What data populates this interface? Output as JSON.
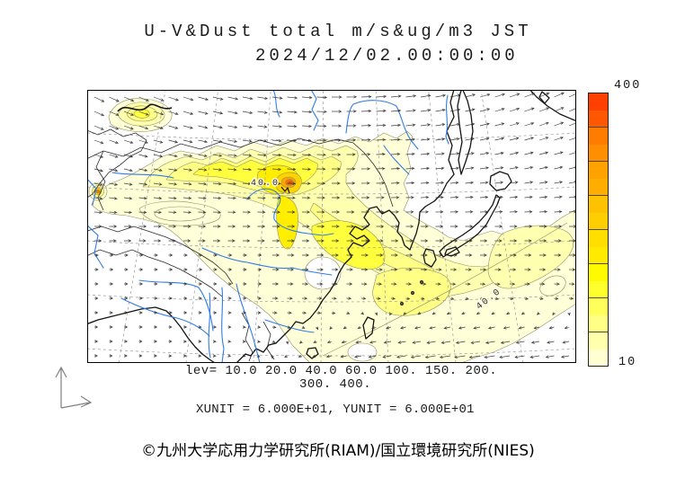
{
  "header": {
    "title": "U-V&Dust total m/s&ug/m3 JST",
    "datetime": "2024/12/02.00:00:00"
  },
  "chart_data": {
    "type": "heatmap",
    "title": "U-V&Dust total m/s&ug/m3 JST",
    "datetime": "2024/12/02.00:00:00",
    "variables": "U-V wind vectors (m/s) and total dust concentration (ug/m3)",
    "contour_levels": [
      10.0,
      20.0,
      40.0,
      60.0,
      100,
      150,
      200,
      300,
      400
    ],
    "contour_labels": [
      "40.0",
      "40.0"
    ],
    "colorbar": {
      "max_label": "400",
      "min_label": "10",
      "colors": [
        "#FF4000",
        "#FF5800",
        "#FF7C00",
        "#FF8E00",
        "#FFA200",
        "#FFAE00",
        "#FFC200",
        "#FFCE00",
        "#FFDE00",
        "#FFEA00",
        "#FFFA00",
        "#FFFF2E",
        "#FFFF5C",
        "#FFFF86",
        "#FFFFAC",
        "#FFFFD2"
      ]
    },
    "legend_line1": "lev= 10.0 20.0 40.0 60.0 100. 150. 200.",
    "legend_line2": "300. 400.",
    "units_line": "XUNIT = 6.000E+01, YUNIT = 6.000E+01"
  },
  "palette": {
    "coast": "#141414",
    "border": "#2b2b2b",
    "river": "#2f7ce8",
    "grat": "#9a9a9a",
    "arrow": "#2b2b2b",
    "contour": "#8f8f62",
    "l10": "#FFFFD8",
    "l20": "#FFFFB0",
    "l40": "#FFFF85",
    "l60": "#FFFF3D",
    "l100": "#FFEE00",
    "l150": "#FFD300",
    "l200": "#FFA500",
    "l300": "#FF7000",
    "l400": "#FF4000"
  },
  "footer": {
    "copyright": "©九州大学応用力学研究所(RIAM)/国立環境研究所(NIES)"
  }
}
